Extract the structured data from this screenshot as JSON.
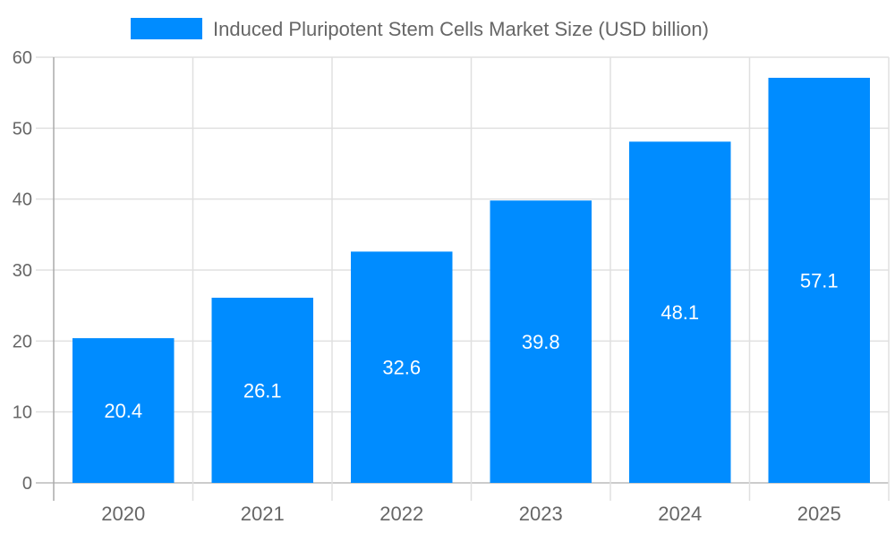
{
  "chart_data": {
    "type": "bar",
    "title": "",
    "legend": {
      "position": "top",
      "entries": [
        "Induced Pluripotent Stem Cells Market Size (USD billion)"
      ]
    },
    "categories": [
      "2020",
      "2021",
      "2022",
      "2023",
      "2024",
      "2025"
    ],
    "series": [
      {
        "name": "Induced Pluripotent Stem Cells Market Size (USD billion)",
        "values": [
          20.4,
          26.1,
          32.6,
          39.8,
          48.1,
          57.1
        ],
        "color": "#008cff"
      }
    ],
    "data_labels": [
      "20.4",
      "26.1",
      "32.6",
      "39.8",
      "48.1",
      "57.1"
    ],
    "xlabel": "",
    "ylabel": "",
    "ylim": [
      0,
      60
    ],
    "yticks": [
      "0",
      "10",
      "20",
      "30",
      "40",
      "50",
      "60"
    ],
    "grid": true
  }
}
